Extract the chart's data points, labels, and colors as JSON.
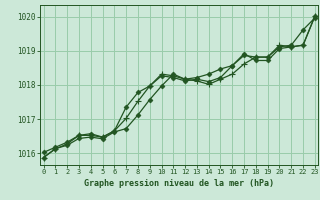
{
  "title": "Graphe pression niveau de la mer (hPa)",
  "bg_color": "#cce8d8",
  "plot_bg_color": "#cce8d8",
  "bottom_bar_color": "#336633",
  "line_color": "#225522",
  "marker_color": "#225522",
  "grid_color": "#99ccaa",
  "xlim": [
    -0.3,
    23.3
  ],
  "ylim": [
    1015.65,
    1020.35
  ],
  "yticks": [
    1016,
    1017,
    1018,
    1019,
    1020
  ],
  "xticks": [
    0,
    1,
    2,
    3,
    4,
    5,
    6,
    7,
    8,
    9,
    10,
    11,
    12,
    13,
    14,
    15,
    16,
    17,
    18,
    19,
    20,
    21,
    22,
    23
  ],
  "series1_x": [
    0,
    1,
    2,
    3,
    4,
    5,
    6,
    7,
    8,
    9,
    10,
    11,
    12,
    13,
    14,
    15,
    16,
    17,
    18,
    19,
    20,
    21,
    22,
    23
  ],
  "series1_y": [
    1015.87,
    1016.13,
    1016.23,
    1016.43,
    1016.47,
    1016.42,
    1016.62,
    1016.72,
    1017.12,
    1017.57,
    1017.97,
    1018.32,
    1018.17,
    1018.22,
    1018.32,
    1018.47,
    1018.57,
    1018.87,
    1018.82,
    1018.82,
    1019.12,
    1019.17,
    1019.62,
    1019.97
  ],
  "series2_x": [
    0,
    1,
    2,
    3,
    4,
    5,
    6,
    7,
    8,
    9,
    10,
    11,
    12,
    13,
    14,
    15,
    16,
    17,
    18,
    19,
    20,
    21,
    22,
    23
  ],
  "series2_y": [
    1016.02,
    1016.17,
    1016.32,
    1016.52,
    1016.57,
    1016.47,
    1016.65,
    1017.35,
    1017.78,
    1017.97,
    1018.27,
    1018.22,
    1018.12,
    1018.17,
    1018.1,
    1018.22,
    1018.57,
    1018.92,
    1018.72,
    1018.72,
    1019.07,
    1019.12,
    1019.17,
    1020.02
  ],
  "series3_x": [
    0,
    1,
    2,
    3,
    4,
    5,
    6,
    7,
    8,
    9,
    10,
    11,
    12,
    13,
    14,
    15,
    16,
    17,
    18,
    19,
    20,
    21,
    22,
    23
  ],
  "series3_y": [
    1015.87,
    1016.12,
    1016.27,
    1016.52,
    1016.52,
    1016.47,
    1016.65,
    1017.02,
    1017.52,
    1017.97,
    1018.32,
    1018.27,
    1018.17,
    1018.12,
    1018.02,
    1018.17,
    1018.32,
    1018.62,
    1018.82,
    1018.82,
    1019.17,
    1019.12,
    1019.17,
    1020.02
  ]
}
